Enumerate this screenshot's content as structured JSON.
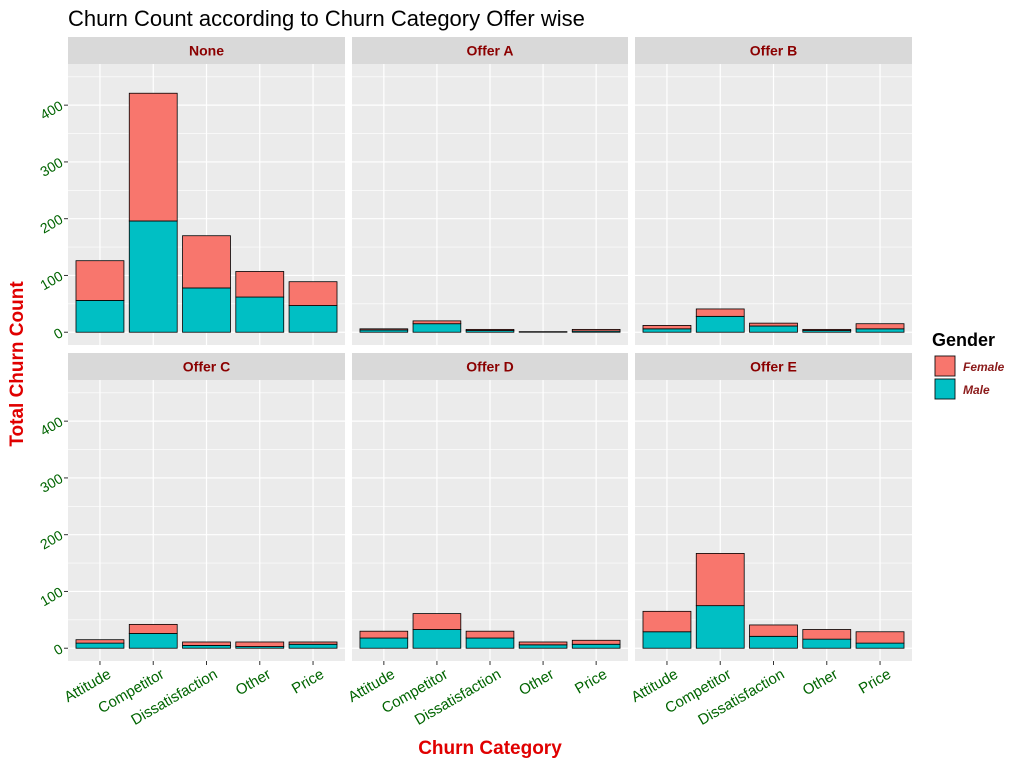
{
  "chart_data": {
    "type": "bar",
    "stacked": true,
    "faceted": true,
    "title": "Churn Count according to Churn Category Offer wise",
    "xlabel": "Churn Category",
    "ylabel": "Total Churn Count",
    "ylim": [
      0,
      450
    ],
    "yticks": [
      0,
      100,
      200,
      300,
      400
    ],
    "categories": [
      "Attitude",
      "Competitor",
      "Dissatisfaction",
      "Other",
      "Price"
    ],
    "legend": {
      "title": "Gender",
      "position": "right",
      "entries": [
        {
          "name": "Female",
          "color": "#f8766d"
        },
        {
          "name": "Male",
          "color": "#00bfc4"
        }
      ]
    },
    "facets": [
      {
        "name": "None",
        "series": [
          {
            "name": "Male",
            "values": [
              56,
              196,
              78,
              62,
              47
            ]
          },
          {
            "name": "Female",
            "values": [
              70,
              225,
              92,
              45,
              42
            ]
          }
        ]
      },
      {
        "name": "Offer A",
        "series": [
          {
            "name": "Male",
            "values": [
              4,
              15,
              3,
              1,
              2
            ]
          },
          {
            "name": "Female",
            "values": [
              2,
              5,
              2,
              0,
              3
            ]
          }
        ]
      },
      {
        "name": "Offer B",
        "series": [
          {
            "name": "Male",
            "values": [
              6,
              28,
              11,
              3,
              6
            ]
          },
          {
            "name": "Female",
            "values": [
              6,
              13,
              5,
              2,
              9
            ]
          }
        ]
      },
      {
        "name": "Offer C",
        "series": [
          {
            "name": "Male",
            "values": [
              9,
              26,
              5,
              3,
              7
            ]
          },
          {
            "name": "Female",
            "values": [
              6,
              16,
              6,
              8,
              4
            ]
          }
        ]
      },
      {
        "name": "Offer D",
        "series": [
          {
            "name": "Male",
            "values": [
              18,
              33,
              18,
              6,
              7
            ]
          },
          {
            "name": "Female",
            "values": [
              12,
              28,
              12,
              5,
              7
            ]
          }
        ]
      },
      {
        "name": "Offer E",
        "series": [
          {
            "name": "Male",
            "values": [
              29,
              75,
              21,
              16,
              9
            ]
          },
          {
            "name": "Female",
            "values": [
              36,
              92,
              20,
              17,
              20
            ]
          }
        ]
      }
    ]
  }
}
